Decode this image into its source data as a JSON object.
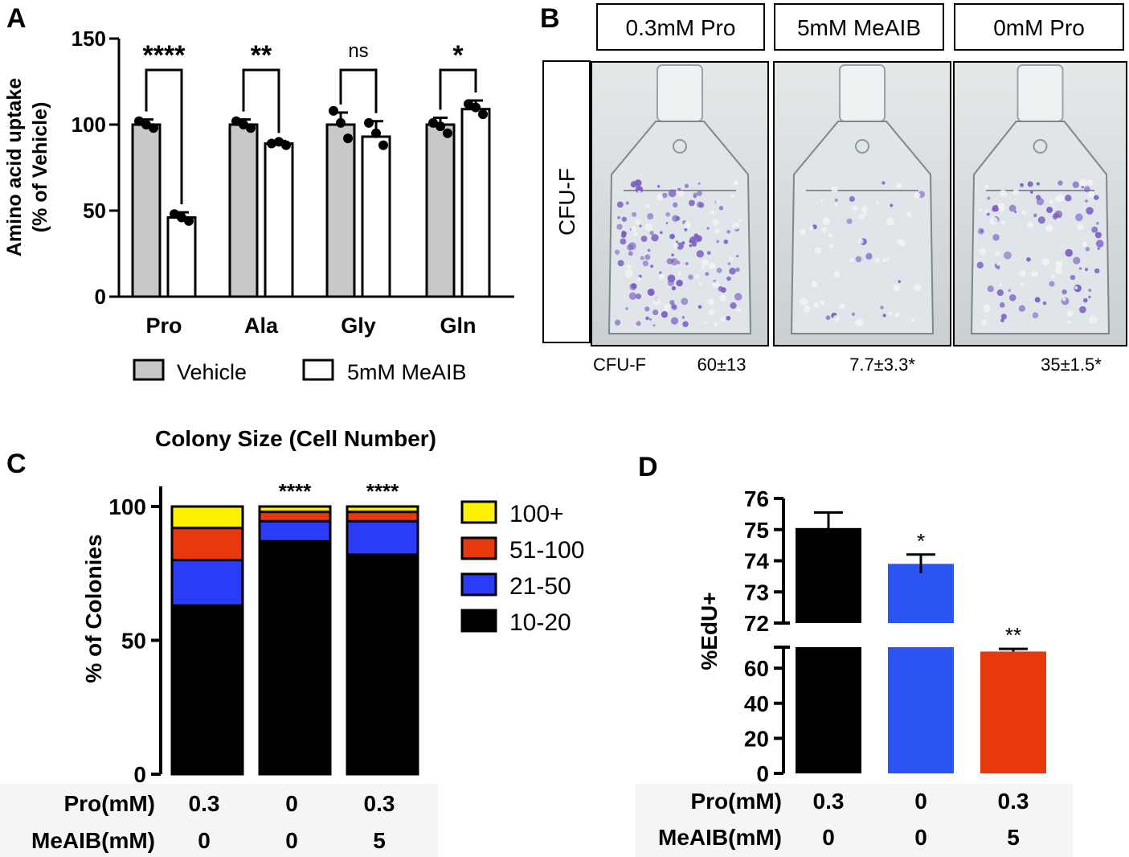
{
  "panels": {
    "A": {
      "label": "A",
      "chart_data": {
        "type": "bar",
        "ylabel": "Amino acid uptake (% of Vehicle)",
        "ylabel_lines": [
          "Amino acid uptake",
          "(% of Vehicle)"
        ],
        "ylim": [
          0,
          150
        ],
        "yticks": [
          0,
          50,
          100,
          150
        ],
        "categories": [
          "Pro",
          "Ala",
          "Gly",
          "Gln"
        ],
        "series": [
          {
            "name": "Vehicle",
            "color": "#c8c8c8",
            "values": [
              100,
              100,
              100,
              100
            ],
            "errors": [
              3,
              3,
              7,
              4
            ]
          },
          {
            "name": "5mM MeAIB",
            "color": "#ffffff",
            "values": [
              46,
              89,
              93,
              109
            ],
            "errors": [
              3,
              1.5,
              9,
              5
            ]
          }
        ],
        "points": [
          [
            [
              102,
              100,
              98
            ],
            [
              48,
              46,
              44
            ]
          ],
          [
            [
              102,
              100,
              98
            ],
            [
              89,
              90,
              88
            ]
          ],
          [
            [
              108,
              101,
              92
            ],
            [
              101,
              95,
              88
            ]
          ],
          [
            [
              101,
              99,
              95
            ],
            [
              112,
              110,
              106
            ]
          ]
        ],
        "significance": [
          "****",
          "**",
          "ns",
          "*"
        ],
        "legend": [
          "Vehicle",
          "5mM MeAIB"
        ]
      }
    },
    "B": {
      "label": "B",
      "columns": [
        "0.3mM Pro",
        "5mM MeAIB",
        "0mM Pro"
      ],
      "row_label": "CFU-F",
      "count_label": "CFU-F",
      "counts": [
        "60±13",
        "7.7±3.3*",
        "35±1.5*"
      ],
      "colony_density": [
        1.0,
        0.13,
        0.55
      ]
    },
    "C": {
      "label": "C",
      "chart_data": {
        "type": "bar",
        "stacked": true,
        "title": "Colony Size (Cell Number)",
        "ylabel": "% of Colonies",
        "ylim": [
          0,
          100
        ],
        "yticks": [
          0,
          50,
          100
        ],
        "row_labels": [
          "Pro(mM)",
          "MeAIB(mM)"
        ],
        "categories_pro": [
          "0.3",
          "0",
          "0.3"
        ],
        "categories_meaib": [
          "0",
          "0",
          "5"
        ],
        "series": [
          {
            "name": "10-20",
            "color": "#000000",
            "values": [
              63,
              87,
              82
            ]
          },
          {
            "name": "21-50",
            "color": "#2b3cf7",
            "values": [
              17,
              7.5,
              12.5
            ]
          },
          {
            "name": "51-100",
            "color": "#e8380d",
            "values": [
              12,
              3.5,
              3.5
            ]
          },
          {
            "name": "100+",
            "color": "#fff200",
            "values": [
              8,
              2,
              2
            ]
          }
        ],
        "legend_order": [
          "100+",
          "51-100",
          "21-50",
          "10-20"
        ],
        "significance": [
          "",
          "****",
          "****"
        ]
      }
    },
    "D": {
      "label": "D",
      "chart_data": {
        "type": "bar",
        "ylabel": "%EdU+",
        "broken_axis": true,
        "upper_ylim": [
          72,
          76
        ],
        "upper_yticks": [
          72,
          73,
          74,
          75,
          76
        ],
        "lower_ylim": [
          0,
          72
        ],
        "lower_yticks": [
          0,
          20,
          40,
          60
        ],
        "row_labels": [
          "Pro(mM)",
          "MeAIB(mM)"
        ],
        "categories_pro": [
          "0.3",
          "0",
          "0.3"
        ],
        "categories_meaib": [
          "0",
          "0",
          "5"
        ],
        "values": [
          75.05,
          73.9,
          69.5
        ],
        "errors": [
          0.5,
          0.3,
          1.5
        ],
        "colors": [
          "#000000",
          "#2b55f2",
          "#e8380d"
        ],
        "significance": [
          "",
          "*",
          "**"
        ]
      }
    }
  }
}
